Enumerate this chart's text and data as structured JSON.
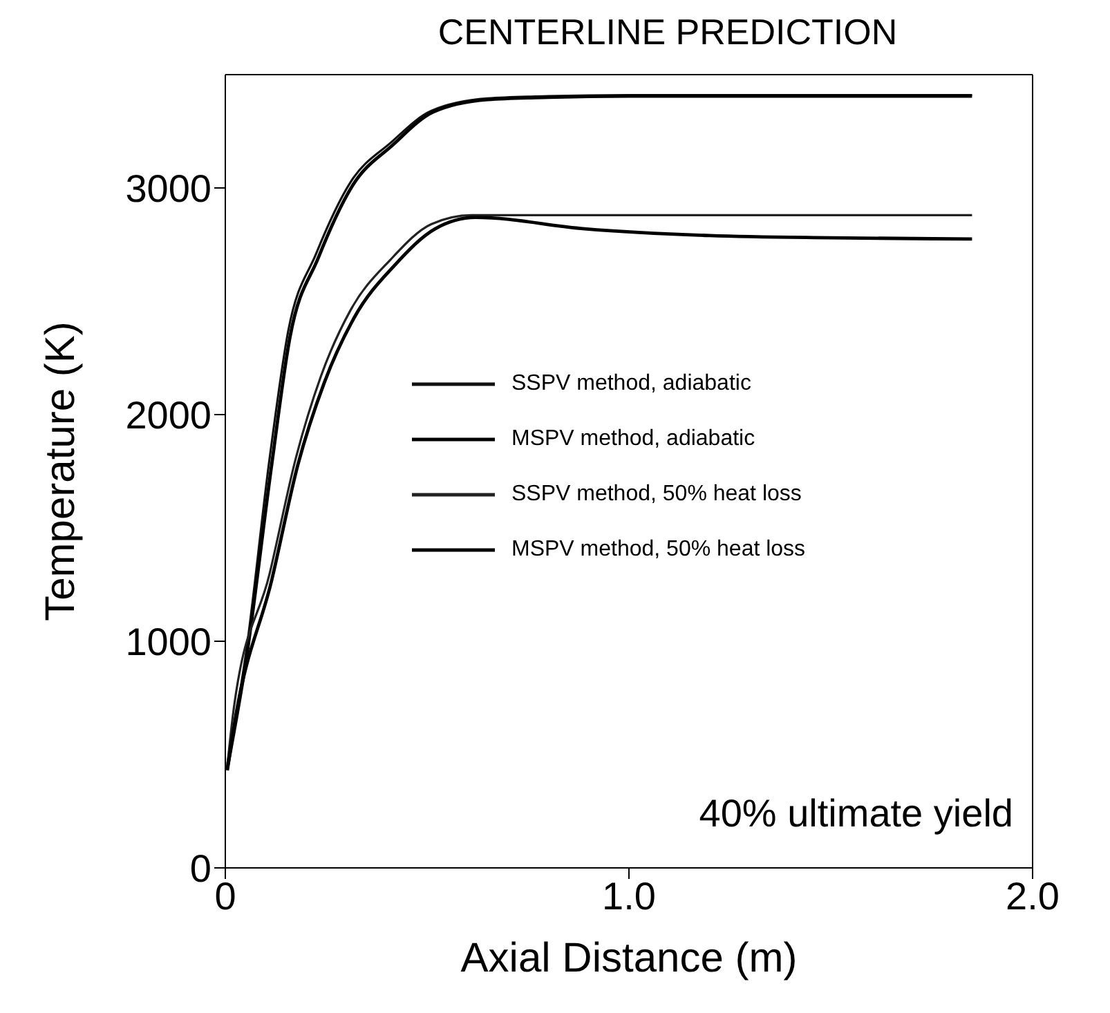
{
  "chart_data": {
    "type": "line",
    "title": "CENTERLINE PREDICTION",
    "xlabel": "Axial Distance (m)",
    "ylabel": "Temperature (K)",
    "xlim": [
      0,
      2.0
    ],
    "xticks": [
      0,
      {
        "value": 1,
        "label": "1.0"
      },
      {
        "value": 2,
        "label": "2.0"
      }
    ],
    "ylim": [
      0,
      3500
    ],
    "yticks": [
      0,
      1000,
      2000,
      3000
    ],
    "legend": "right",
    "marker": "none",
    "line_style": "solid",
    "annotations": [
      "40% ultimate yield"
    ],
    "series": [
      {
        "name": "SSPV method, adiabatic",
        "color": "#111111",
        "x": [
          0.005,
          0.05,
          0.11,
          0.156,
          0.225,
          0.31,
          0.41,
          0.51,
          0.65,
          0.8,
          1.0,
          1.4,
          1.85
        ],
        "values": [
          460,
          933,
          1810,
          2370,
          2710,
          3025,
          3200,
          3340,
          3395,
          3405,
          3410,
          3410,
          3410
        ]
      },
      {
        "name": "MSPV method, adiabatic",
        "color": "#000000",
        "x": [
          0.005,
          0.05,
          0.115,
          0.16,
          0.23,
          0.315,
          0.415,
          0.515,
          0.65,
          0.8,
          1.0,
          1.4,
          1.85
        ],
        "values": [
          440,
          900,
          1780,
          2340,
          2690,
          3010,
          3190,
          3335,
          3390,
          3400,
          3405,
          3405,
          3405
        ]
      },
      {
        "name": "SSPV method, 50% heat loss",
        "color": "#222222",
        "x": [
          0.005,
          0.02,
          0.11,
          0.175,
          0.237,
          0.31,
          0.41,
          0.51,
          0.61,
          0.8,
          1.0,
          1.4,
          1.85
        ],
        "values": [
          450,
          690,
          1300,
          1810,
          2170,
          2460,
          2685,
          2840,
          2880,
          2880,
          2880,
          2880,
          2880
        ]
      },
      {
        "name": "MSPV method, 50% heat loss",
        "color": "#000000",
        "x": [
          0.005,
          0.025,
          0.115,
          0.18,
          0.245,
          0.32,
          0.42,
          0.52,
          0.62,
          0.89,
          1.2,
          1.5,
          1.85
        ],
        "values": [
          430,
          660,
          1270,
          1780,
          2140,
          2430,
          2660,
          2820,
          2870,
          2820,
          2790,
          2780,
          2775
        ]
      }
    ]
  }
}
